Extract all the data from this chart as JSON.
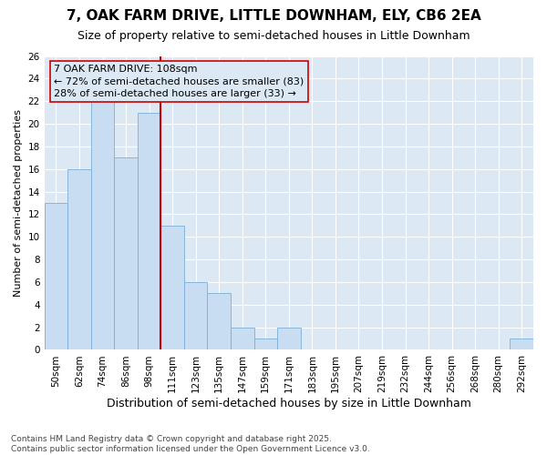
{
  "title": "7, OAK FARM DRIVE, LITTLE DOWNHAM, ELY, CB6 2EA",
  "subtitle": "Size of property relative to semi-detached houses in Little Downham",
  "xlabel": "Distribution of semi-detached houses by size in Little Downham",
  "ylabel": "Number of semi-detached properties",
  "categories": [
    "50sqm",
    "62sqm",
    "74sqm",
    "86sqm",
    "98sqm",
    "111sqm",
    "123sqm",
    "135sqm",
    "147sqm",
    "159sqm",
    "171sqm",
    "183sqm",
    "195sqm",
    "207sqm",
    "219sqm",
    "232sqm",
    "244sqm",
    "256sqm",
    "268sqm",
    "280sqm",
    "292sqm"
  ],
  "values": [
    13,
    16,
    22,
    17,
    21,
    11,
    6,
    5,
    2,
    1,
    2,
    0,
    0,
    0,
    0,
    0,
    0,
    0,
    0,
    0,
    1
  ],
  "bar_color": "#c9ddf2",
  "bar_edge_color": "#7bafd4",
  "vline_color": "#cc0000",
  "vline_index": 5,
  "annotation_text": "7 OAK FARM DRIVE: 108sqm\n← 72% of semi-detached houses are smaller (83)\n28% of semi-detached houses are larger (33) →",
  "annotation_box_color": "#cc0000",
  "ylim": [
    0,
    26
  ],
  "yticks": [
    0,
    2,
    4,
    6,
    8,
    10,
    12,
    14,
    16,
    18,
    20,
    22,
    24,
    26
  ],
  "bg_color": "#dce9f5",
  "grid_color": "#ffffff",
  "footer_line1": "Contains HM Land Registry data © Crown copyright and database right 2025.",
  "footer_line2": "Contains public sector information licensed under the Open Government Licence v3.0.",
  "title_fontsize": 11,
  "subtitle_fontsize": 9,
  "xlabel_fontsize": 9,
  "ylabel_fontsize": 8,
  "tick_fontsize": 7.5,
  "annotation_fontsize": 8,
  "footer_fontsize": 6.5
}
